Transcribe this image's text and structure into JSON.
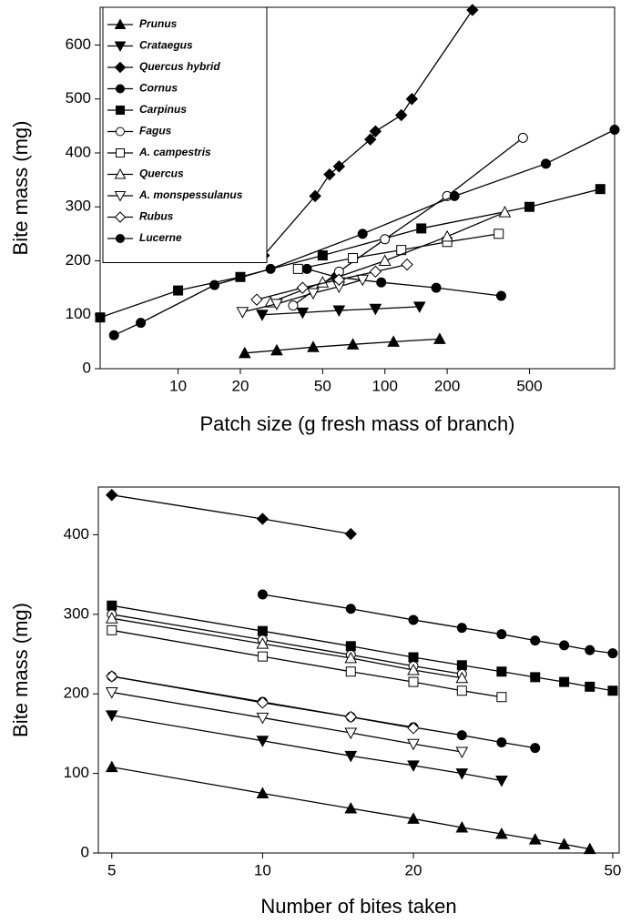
{
  "chart_data": [
    {
      "type": "line",
      "x_label": "Patch size (g fresh mass of branch)",
      "y_label": "Bite mass (mg)",
      "log_x": true,
      "xlim": [
        4.2,
        1290
      ],
      "xticks": [
        10,
        20,
        50,
        100,
        200,
        500
      ],
      "ylim": [
        0,
        670
      ],
      "yticks": [
        0,
        100,
        200,
        300,
        400,
        500,
        600
      ],
      "legend": "upper left",
      "series": [
        {
          "name": "Prunus",
          "marker": "triangle-up",
          "fill": "#000",
          "color": "#000",
          "x": [
            21,
            30,
            45,
            70,
            110,
            184
          ],
          "values": [
            29,
            34,
            40,
            45,
            50,
            55
          ]
        },
        {
          "name": "Crataegus",
          "marker": "triangle-down",
          "fill": "#000",
          "color": "#000",
          "x": [
            25.5,
            40,
            60,
            90,
            147
          ],
          "values": [
            100,
            104,
            108,
            111,
            115
          ]
        },
        {
          "name": "Quercus hybrid",
          "marker": "diamond",
          "fill": "#000",
          "color": "#000",
          "x": [
            26,
            46,
            54,
            60,
            85,
            90,
            120,
            135,
            265
          ],
          "values": [
            210,
            320,
            360,
            375,
            425,
            440,
            470,
            500,
            665
          ]
        },
        {
          "name": "Cornus",
          "marker": "circle",
          "fill": "#000",
          "color": "#000",
          "x": [
            42,
            58,
            96,
            177,
            365
          ],
          "values": [
            185,
            170,
            160,
            150,
            135
          ]
        },
        {
          "name": "Carpinus",
          "marker": "square",
          "fill": "#000",
          "color": "#000",
          "x": [
            4.2,
            10,
            20,
            50,
            150,
            500,
            1100
          ],
          "values": [
            95,
            145,
            170,
            210,
            260,
            300,
            333
          ]
        },
        {
          "name": "Fagus",
          "marker": "circle",
          "fill": "#fff",
          "color": "#000",
          "x": [
            36,
            60,
            100,
            200,
            465
          ],
          "values": [
            117,
            180,
            240,
            320,
            428
          ]
        },
        {
          "name": "A. campestris",
          "marker": "square",
          "fill": "#fff",
          "color": "#000",
          "x": [
            38,
            70,
            120,
            200,
            355
          ],
          "values": [
            185,
            205,
            220,
            235,
            250
          ]
        },
        {
          "name": "Quercus",
          "marker": "triangle-up",
          "fill": "#fff",
          "color": "#000",
          "x": [
            28,
            50,
            100,
            200,
            380
          ],
          "values": [
            123,
            160,
            200,
            245,
            290
          ]
        },
        {
          "name": "A. monspessulanus",
          "marker": "triangle-down",
          "fill": "#fff",
          "color": "#000",
          "x": [
            20.5,
            30,
            45,
            60,
            78
          ],
          "values": [
            105,
            120,
            140,
            152,
            165
          ]
        },
        {
          "name": "Rubus",
          "marker": "diamond",
          "fill": "#fff",
          "color": "#000",
          "x": [
            24,
            40,
            60,
            90,
            128
          ],
          "values": [
            128,
            150,
            165,
            180,
            193
          ]
        },
        {
          "name": "Lucerne",
          "marker": "circle",
          "fill": "#000",
          "color": "#000",
          "x": [
            4.9,
            6.6,
            15,
            28,
            78,
            217,
            600,
            1290
          ],
          "values": [
            62,
            85,
            155,
            185,
            250,
            320,
            380,
            443
          ]
        }
      ]
    },
    {
      "type": "line",
      "x_label": "Number of bites taken",
      "y_label": "Bite mass (mg)",
      "log_x": true,
      "xlim": [
        4.7,
        51.5
      ],
      "xticks": [
        5,
        10,
        20,
        50
      ],
      "ylim": [
        0,
        460
      ],
      "yticks": [
        0,
        100,
        200,
        300,
        400
      ],
      "series": [
        {
          "marker": "triangle-up",
          "fill": "#000",
          "color": "#000",
          "x": [
            5,
            10,
            15,
            20,
            25,
            30,
            35,
            40,
            45
          ],
          "values": [
            108,
            75,
            56,
            43,
            32,
            24,
            17,
            11,
            5
          ]
        },
        {
          "marker": "triangle-down",
          "fill": "#000",
          "color": "#000",
          "x": [
            5,
            10,
            15,
            20,
            25,
            30
          ],
          "values": [
            173,
            141,
            122,
            110,
            100,
            91
          ]
        },
        {
          "marker": "diamond",
          "fill": "#000",
          "color": "#000",
          "x": [
            5,
            10,
            15
          ],
          "values": [
            450,
            420,
            401
          ]
        },
        {
          "marker": "circle",
          "fill": "#000",
          "color": "#000",
          "x": [
            5,
            10,
            15,
            20,
            25,
            30,
            35
          ],
          "values": [
            222,
            190,
            171,
            158,
            148,
            139,
            132
          ]
        },
        {
          "marker": "square",
          "fill": "#000",
          "color": "#000",
          "x": [
            5,
            10,
            15,
            20,
            25,
            30,
            35,
            40,
            45,
            50
          ],
          "values": [
            311,
            279,
            260,
            246,
            236,
            228,
            221,
            215,
            209,
            204
          ]
        },
        {
          "marker": "circle",
          "fill": "#fff",
          "color": "#000",
          "x": [
            5,
            10,
            15,
            20,
            25
          ],
          "values": [
            300,
            268,
            249,
            235,
            225
          ]
        },
        {
          "marker": "square",
          "fill": "#fff",
          "color": "#000",
          "x": [
            5,
            10,
            15,
            20,
            25,
            30
          ],
          "values": [
            280,
            247,
            228,
            215,
            204,
            196
          ]
        },
        {
          "marker": "triangle-up",
          "fill": "#fff",
          "color": "#000",
          "x": [
            5,
            10,
            15,
            20,
            25
          ],
          "values": [
            295,
            263,
            245,
            230,
            220
          ]
        },
        {
          "marker": "triangle-down",
          "fill": "#fff",
          "color": "#000",
          "x": [
            5,
            10,
            15,
            20,
            25
          ],
          "values": [
            202,
            170,
            151,
            137,
            127
          ]
        },
        {
          "marker": "diamond",
          "fill": "#fff",
          "color": "#000",
          "x": [
            5,
            10,
            15,
            20
          ],
          "values": [
            222,
            189,
            171,
            157
          ]
        },
        {
          "marker": "circle",
          "fill": "#000",
          "color": "#000",
          "x": [
            10,
            15,
            20,
            25,
            30,
            35,
            40,
            45,
            50
          ],
          "values": [
            325,
            307,
            293,
            283,
            275,
            267,
            261,
            255,
            251
          ]
        }
      ]
    }
  ]
}
